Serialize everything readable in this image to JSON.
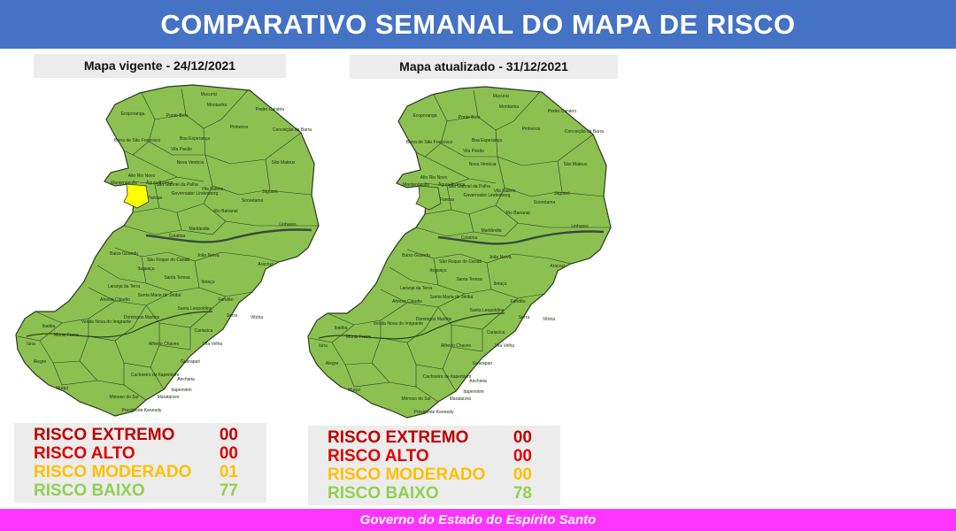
{
  "header": {
    "title": "COMPARATIVO SEMANAL DO MAPA DE RISCO"
  },
  "maps": [
    {
      "caption": "Mapa vigente - 24/12/2021",
      "legend": [
        {
          "label": "RISCO EXTREMO",
          "value": "00",
          "color": "#c00000"
        },
        {
          "label": "RISCO ALTO",
          "value": "00",
          "color": "#e00000"
        },
        {
          "label": "RISCO MODERADO",
          "value": "01",
          "color": "#ffc000"
        },
        {
          "label": "RISCO BAIXO",
          "value": "77",
          "color": "#92d050"
        }
      ]
    },
    {
      "caption": "Mapa atualizado - 31/12/2021",
      "legend": [
        {
          "label": "RISCO EXTREMO",
          "value": "00",
          "color": "#c00000"
        },
        {
          "label": "RISCO ALTO",
          "value": "00",
          "color": "#e00000"
        },
        {
          "label": "RISCO MODERADO",
          "value": "00",
          "color": "#ffc000"
        },
        {
          "label": "RISCO BAIXO",
          "value": "78",
          "color": "#92d050"
        }
      ]
    }
  ],
  "map_colors": {
    "baixo": "#8cc152",
    "moderado": "#ffff00",
    "border": "#2b3a1f",
    "river": "#3a4a3a"
  },
  "municipalities": {
    "left": [
      "Mucurici",
      "Montanha",
      "Ecoporanga",
      "Ponto Belo",
      "Pedro Canário",
      "Pinheiros",
      "Conceição da Barra",
      "Boa Esperança",
      "Barra de São Francisco",
      "Vila Pavão",
      "Nova Venécia",
      "São Mateus",
      "Mantenópolis",
      "Alto Rio Novo",
      "Águia Branca",
      "São Gabriel da Palha",
      "Vila Valério",
      "Jaguaré",
      "Sooretama",
      "Pancas",
      "Governador Lindenberg",
      "Rio Bananal",
      "Linhares",
      "Marilândia",
      "Colatina",
      "Baixo Guandu",
      "São Roque do Canaã",
      "João Neiva",
      "Aracruz",
      "Itaguaçu",
      "Laranja da Terra",
      "Santa Teresa",
      "Ibiraçu",
      "Fundão",
      "Afonso Cláudio",
      "Santa Maria de Jetibá",
      "Santa Leopoldina",
      "Serra",
      "Vitória",
      "Domingos Martins",
      "Venda Nova do Imigrante",
      "Cariacica",
      "Vila Velha",
      "Muniz Freire",
      "Alfredo Chaves",
      "Guarapari",
      "Cachoeiro de Itapemirim",
      "Anchieta",
      "Alegre",
      "Muqui",
      "Marataízes",
      "Mimoso do Sul",
      "Presidente Kennedy",
      "Itapemirim",
      "Iúna",
      "Ibatiba"
    ],
    "right": [
      "Mucurici",
      "Montanha",
      "Ecoporanga",
      "Ponto Belo",
      "Pedro Canário",
      "Pinheiros",
      "Conceição da Barra",
      "Boa Esperança",
      "Barra de São Francisco",
      "Vila Pavão",
      "Nova Venécia",
      "São Mateus",
      "Mantenópolis",
      "Alto Rio Novo",
      "Águia Branca",
      "São Gabriel da Palha",
      "Vila Valério",
      "Jaguaré",
      "Sooretama",
      "Pancas",
      "Governador Lindenberg",
      "Rio Bananal",
      "Linhares",
      "Marilândia",
      "Colatina",
      "Baixo Guandu",
      "São Roque do Canaã",
      "João Neiva",
      "Aracruz",
      "Itaguaçu",
      "Laranja da Terra",
      "Santa Teresa",
      "Ibiraçu",
      "Fundão",
      "Afonso Cláudio",
      "Santa Maria de Jetibá",
      "Santa Leopoldina",
      "Serra",
      "Vitória",
      "Domingos Martins",
      "Venda Nova do Imigrante",
      "Cariacica",
      "Vila Velha",
      "Muniz Freire",
      "Alfredo Chaves",
      "Guarapari",
      "Cachoeiro de Itapemirim",
      "Anchieta",
      "Alegre",
      "Muqui",
      "Marataízes",
      "Mimoso do Sul",
      "Presidente Kennedy",
      "Itapemirim",
      "Iúna",
      "Ibatiba"
    ]
  },
  "footer": {
    "text": "Governo do Estado do Espírito Santo"
  }
}
